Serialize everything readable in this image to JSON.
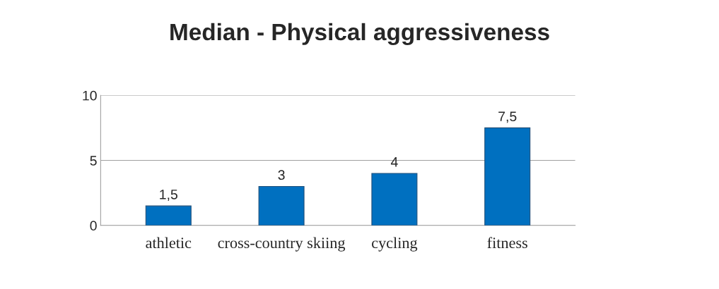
{
  "chart_data": {
    "type": "bar",
    "title": "Median - Physical aggressiveness",
    "categories": [
      "athletic",
      "cross-country skiing",
      "cycling",
      "fitness"
    ],
    "values": [
      1.5,
      3,
      4,
      7.5
    ],
    "value_labels": [
      "1,5",
      "3",
      "4",
      "7,5"
    ],
    "color": "#0070c0",
    "ylim": [
      0,
      10
    ],
    "yticks": [
      0,
      5,
      10
    ],
    "grid": "y"
  }
}
